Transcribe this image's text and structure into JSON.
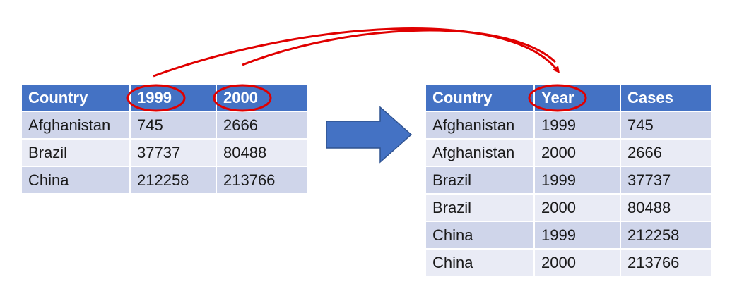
{
  "wide_table": {
    "headers": [
      "Country",
      "1999",
      "2000"
    ],
    "rows": [
      [
        "Afghanistan",
        "745",
        "2666"
      ],
      [
        "Brazil",
        "37737",
        "80488"
      ],
      [
        "China",
        "212258",
        "213766"
      ]
    ]
  },
  "long_table": {
    "headers": [
      "Country",
      "Year",
      "Cases"
    ],
    "rows": [
      [
        "Afghanistan",
        "1999",
        "745"
      ],
      [
        "Afghanistan",
        "2000",
        "2666"
      ],
      [
        "Brazil",
        "1999",
        "37737"
      ],
      [
        "Brazil",
        "2000",
        "80488"
      ],
      [
        "China",
        "1999",
        "212258"
      ],
      [
        "China",
        "2000",
        "213766"
      ]
    ]
  },
  "colors": {
    "header_fill": "#4472C4",
    "row_odd": "#CFD5EA",
    "row_even": "#E9EBF5",
    "highlight": "#E00000",
    "transform_arrow": "#4472C4"
  }
}
